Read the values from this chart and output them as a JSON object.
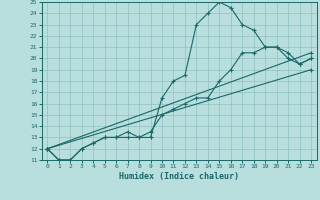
{
  "xlabel": "Humidex (Indice chaleur)",
  "xlim": [
    -0.5,
    23.5
  ],
  "ylim": [
    11,
    25
  ],
  "xticks": [
    0,
    1,
    2,
    3,
    4,
    5,
    6,
    7,
    8,
    9,
    10,
    11,
    12,
    13,
    14,
    15,
    16,
    17,
    18,
    19,
    20,
    21,
    22,
    23
  ],
  "yticks": [
    11,
    12,
    13,
    14,
    15,
    16,
    17,
    18,
    19,
    20,
    21,
    22,
    23,
    24,
    25
  ],
  "bg_color": "#b8dede",
  "grid_color": "#90c0c0",
  "line_color": "#1a6868",
  "lines": [
    {
      "x": [
        0,
        1,
        2,
        3,
        4,
        5,
        6,
        7,
        8,
        9,
        10,
        11,
        12,
        13,
        14,
        15,
        16,
        17,
        18,
        19,
        20,
        21,
        22,
        23
      ],
      "y": [
        12,
        11,
        11,
        12,
        12.5,
        13,
        13,
        13,
        13,
        13,
        16.5,
        18,
        18.5,
        23,
        24,
        25,
        24.5,
        23,
        22.5,
        21,
        21,
        20,
        19.5,
        20
      ],
      "marker": true
    },
    {
      "x": [
        0,
        1,
        2,
        3,
        4,
        5,
        6,
        7,
        8,
        9,
        10,
        11,
        12,
        13,
        14,
        15,
        16,
        17,
        18,
        19,
        20,
        21,
        22,
        23
      ],
      "y": [
        12,
        11,
        11,
        12,
        12.5,
        13,
        13,
        13.5,
        13,
        13.5,
        15,
        15.5,
        16,
        16.5,
        16.5,
        18,
        19,
        20.5,
        20.5,
        21,
        21,
        20.5,
        19.5,
        20
      ],
      "marker": true
    },
    {
      "x": [
        0,
        23
      ],
      "y": [
        12,
        20.5
      ],
      "marker": true
    },
    {
      "x": [
        0,
        23
      ],
      "y": [
        12,
        19
      ],
      "marker": true
    }
  ]
}
